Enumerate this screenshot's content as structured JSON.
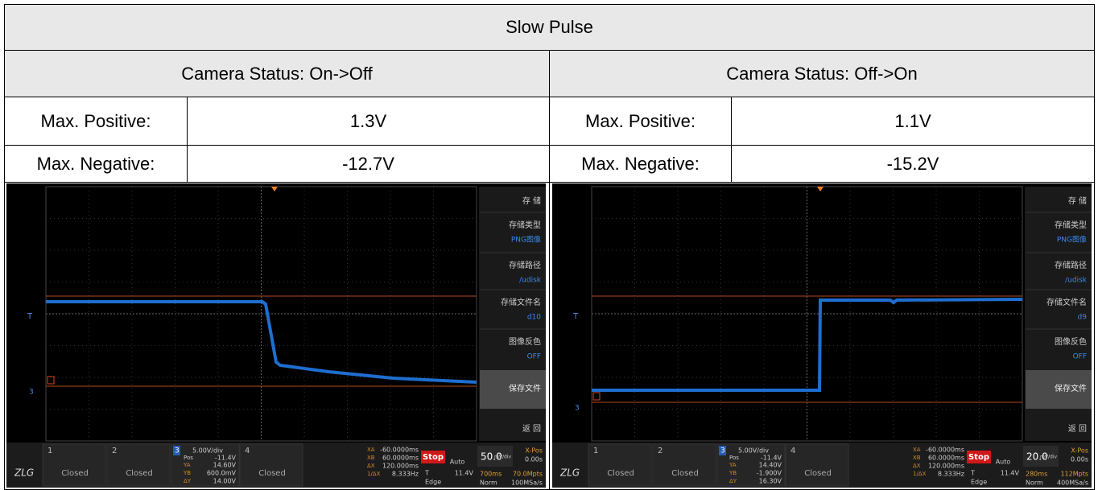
{
  "table": {
    "title": "Slow Pulse",
    "columns": [
      {
        "status": "Camera Status: On->Off",
        "rows": [
          [
            "Max. Positive:",
            "1.3V"
          ],
          [
            "Max. Negative:",
            "-12.7V"
          ]
        ]
      },
      {
        "status": "Camera Status: Off->On",
        "rows": [
          [
            "Max. Positive:",
            "1.1V"
          ],
          [
            "Max. Negative:",
            "-15.2V"
          ]
        ]
      }
    ]
  },
  "scope_labels": {
    "menu_title": "存 储",
    "type": "存储类型",
    "type_value": "PNG图像",
    "path": "存储路径",
    "path_value": "/udisk",
    "file": "存储文件名",
    "invert": "图像反色",
    "invert_value": "OFF",
    "save": "保存文件",
    "back": "返 回",
    "ch1": "1",
    "ch2": "2",
    "ch3": "3",
    "ch4": "4",
    "closed": "Closed",
    "vdiv": "5.00V/div",
    "pos": "Pos",
    "pos_value": "-11.4V",
    "ya": "YA",
    "yb": "YB",
    "dy": "ΔY",
    "xa": "XA",
    "xa_value": "-60.0000ms",
    "xb": "XB",
    "xb_value": "60.0000ms",
    "dx": "ΔX",
    "dx_value": "120.000ms",
    "idx": "1/ΔX",
    "idx_value": "8.333Hz",
    "stop": "Stop",
    "auto": "Auto",
    "t": "T",
    "t_value": "11.4V",
    "edge": "Edge",
    "mvdiv": "mV/div",
    "xpos": "X-Pos",
    "xpos_value": "0.00s",
    "norm": "Norm",
    "trig_marker": "T",
    "ch_marker": "3"
  },
  "scopes": [
    {
      "file": "d10",
      "ya_value": "14.60V",
      "yb_value": "600.0mV",
      "dy_value": "14.00V",
      "scale": "50.0",
      "time": "700ms",
      "pts": "70.0Mpts",
      "rate": "100MSa/s"
    },
    {
      "file": "d9",
      "ya_value": "14.40V",
      "yb_value": "-1.900V",
      "dy_value": "16.30V",
      "scale": "20.0",
      "time": "280ms",
      "pts": "112Mpts",
      "rate": "400MSa/s"
    }
  ]
}
